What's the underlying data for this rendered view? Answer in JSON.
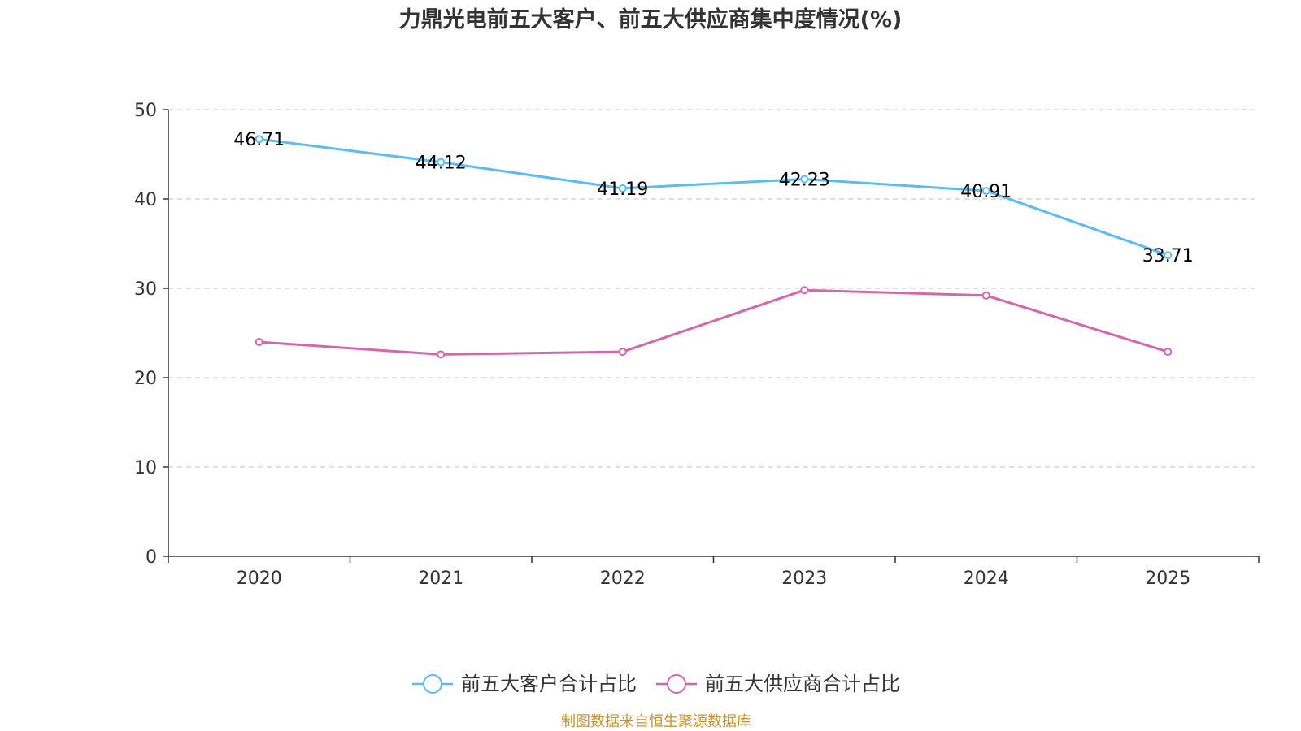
{
  "chart_data": {
    "type": "line",
    "title": "力鼎光电前五大客户、前五大供应商集中度情况(%)",
    "categories": [
      "2020",
      "2021",
      "2022",
      "2023",
      "2024",
      "2025"
    ],
    "ylim": [
      0,
      50
    ],
    "yticks": [
      0,
      10,
      20,
      30,
      40,
      50
    ],
    "grid": true,
    "legend_position": "bottom-center",
    "series": [
      {
        "name": "前五大客户合计占比",
        "color": "#5bbcf2",
        "values": [
          46.71,
          44.12,
          41.19,
          42.23,
          40.91,
          33.71
        ],
        "labels": [
          "46.71",
          "44.12",
          "41.19",
          "42.23",
          "40.91",
          "33.71"
        ],
        "show_labels": true
      },
      {
        "name": "前五大供应商合计占比",
        "color": "#d466ab",
        "values": [
          24.0,
          22.6,
          22.9,
          29.8,
          29.2,
          22.9
        ],
        "show_labels": false
      }
    ]
  },
  "source_note": "制图数据来自恒生聚源数据库"
}
